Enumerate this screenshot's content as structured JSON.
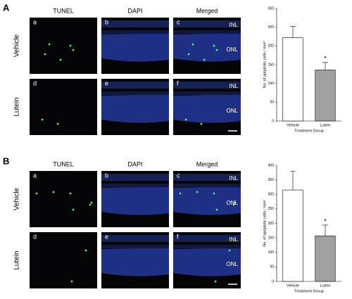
{
  "figure": {
    "panels": [
      {
        "label": "A",
        "columns": [
          "TUNEL",
          "DAPI",
          "Merged"
        ],
        "rows": [
          "Vehicle",
          "Lutein"
        ],
        "subpanels": [
          [
            "a",
            "b",
            "c"
          ],
          [
            "d",
            "e",
            "f"
          ]
        ],
        "layers": [
          "INL",
          "ONL"
        ]
      },
      {
        "label": "B",
        "columns": [
          "TUNEL",
          "DAPI",
          "Merged"
        ],
        "rows": [
          "Vehicle",
          "Lutein"
        ],
        "subpanels": [
          [
            "a",
            "b",
            "c"
          ],
          [
            "d",
            "e",
            "f"
          ]
        ],
        "layers": [
          "INL",
          "ONL"
        ]
      }
    ]
  },
  "chart_data": [
    {
      "type": "bar",
      "categories": [
        "Vehicle",
        "Lutein"
      ],
      "values": [
        222,
        136
      ],
      "errors": [
        30,
        20
      ],
      "colors": [
        "#ffffff",
        "#a0a0a0"
      ],
      "annotation": "*",
      "ylim": [
        0,
        300
      ],
      "yticks": [
        0,
        50,
        100,
        150,
        200,
        250,
        300
      ],
      "y_label": "No. of apoptotic cells / mm²",
      "x_label": "Treatment Group"
    },
    {
      "type": "bar",
      "categories": [
        "Vehicle",
        "Lutein"
      ],
      "values": [
        315,
        157
      ],
      "errors": [
        65,
        37
      ],
      "colors": [
        "#ffffff",
        "#a0a0a0"
      ],
      "annotation": "*",
      "ylim": [
        0,
        400
      ],
      "yticks": [
        0,
        50,
        100,
        150,
        200,
        250,
        300,
        350,
        400
      ],
      "y_label": "No. of apoptotic cells / mm²",
      "x_label": "Treatment Group"
    }
  ]
}
